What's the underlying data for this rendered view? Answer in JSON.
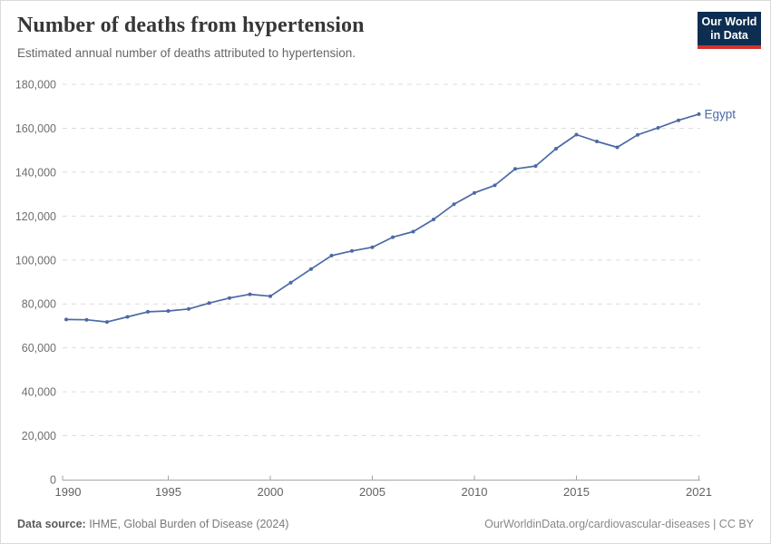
{
  "header": {
    "title": "Number of deaths from hypertension",
    "subtitle": "Estimated annual number of deaths attributed to hypertension."
  },
  "logo": {
    "line1": "Our World",
    "line2": "in Data",
    "bg_color": "#0d2d51",
    "accent_color": "#d0342c"
  },
  "chart_data": {
    "type": "line",
    "title": "Number of deaths from hypertension",
    "xlabel": "",
    "ylabel": "",
    "xlim": [
      1990,
      2021
    ],
    "ylim": [
      0,
      180000
    ],
    "grid": "horizontal-dashed",
    "legend_position": "end-of-line-label",
    "x_ticks": [
      1990,
      1995,
      2000,
      2005,
      2010,
      2015,
      2021
    ],
    "y_ticks": [
      0,
      20000,
      40000,
      60000,
      80000,
      100000,
      120000,
      140000,
      160000,
      180000
    ],
    "x": [
      1990,
      1991,
      1992,
      1993,
      1994,
      1995,
      1996,
      1997,
      1998,
      1999,
      2000,
      2001,
      2002,
      2003,
      2004,
      2005,
      2006,
      2007,
      2008,
      2009,
      2010,
      2011,
      2012,
      2013,
      2014,
      2015,
      2016,
      2017,
      2018,
      2019,
      2020,
      2021
    ],
    "series": [
      {
        "name": "Egypt",
        "color": "#4b69a5",
        "values": [
          72900,
          72800,
          71800,
          74100,
          76400,
          76800,
          77700,
          80400,
          82700,
          84400,
          83500,
          89700,
          95900,
          102000,
          104100,
          105800,
          110400,
          112900,
          118500,
          125400,
          130600,
          134000,
          141500,
          142800,
          150700,
          157100,
          154000,
          151300,
          157000,
          160200,
          163600,
          166400
        ]
      }
    ]
  },
  "style": {
    "grid_color": "#dcdcdc",
    "axis_color": "#a6a6a6",
    "tick_label_color": "#6e6e6e"
  },
  "footer": {
    "source_label": "Data source:",
    "source_text": " IHME, Global Burden of Disease (2024)",
    "attribution": "OurWorldinData.org/cardiovascular-diseases | CC BY"
  }
}
